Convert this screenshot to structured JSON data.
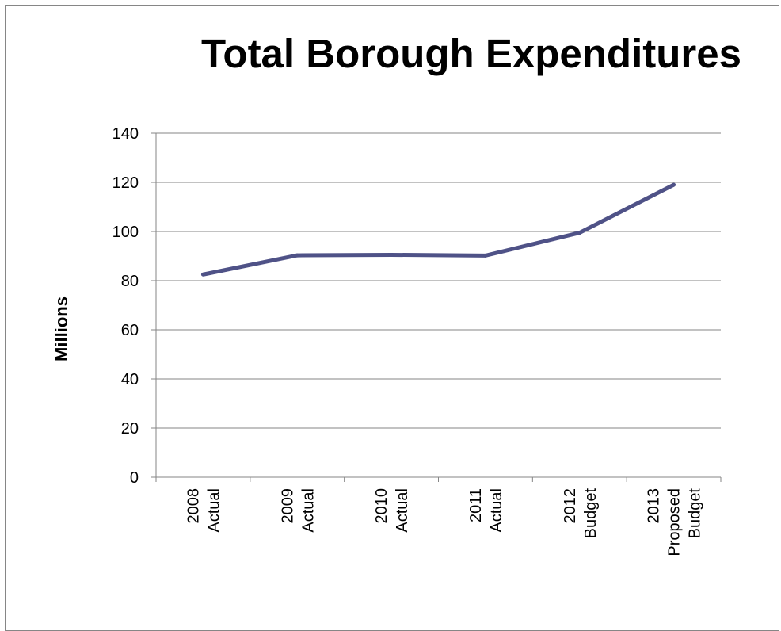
{
  "chart_data": {
    "type": "line",
    "title": "Total Borough Expenditures",
    "ylabel": "Millions",
    "xlabel": "",
    "categories": [
      [
        "2008",
        "Actual"
      ],
      [
        "2009",
        "Actual"
      ],
      [
        "2010",
        "Actual"
      ],
      [
        "2011",
        "Actual"
      ],
      [
        "2012",
        "Budget"
      ],
      [
        "2013",
        "Proposed",
        "Budget"
      ]
    ],
    "series": [
      {
        "values": [
          82.5,
          90.3,
          90.5,
          90.2,
          99.5,
          119.0
        ]
      }
    ],
    "yticks": [
      0,
      20,
      40,
      60,
      80,
      100,
      120,
      140
    ],
    "ylim": [
      0,
      140
    ],
    "grid": true,
    "legend": "none",
    "colors": {
      "line": "#4F5287",
      "grid": "#868686",
      "axis": "#868686"
    }
  }
}
